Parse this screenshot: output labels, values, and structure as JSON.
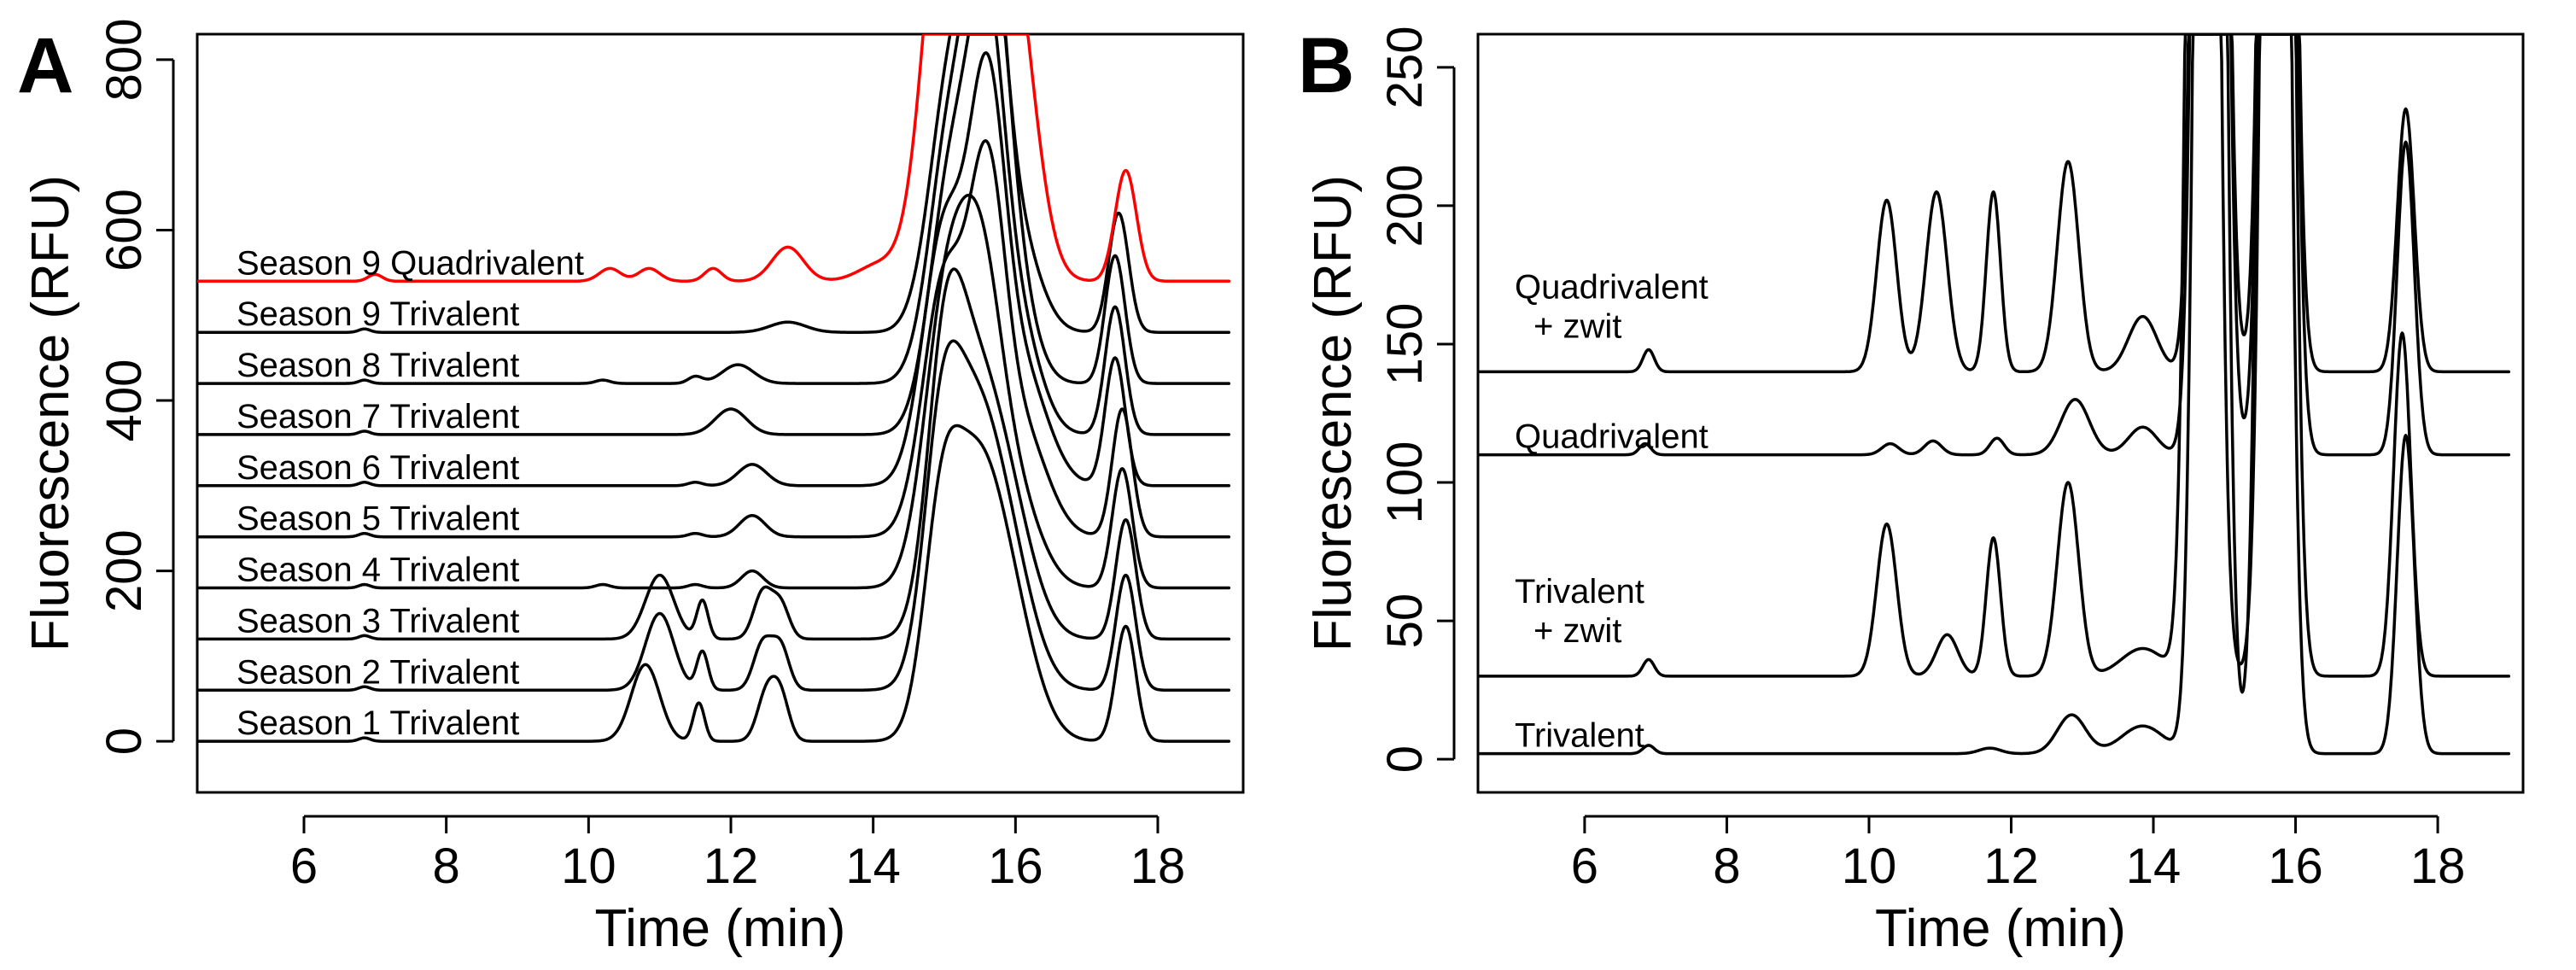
{
  "figure": {
    "panels": [
      "A",
      "B"
    ]
  },
  "chart_data": [
    {
      "panel": "A",
      "type": "line",
      "title": "",
      "xlabel": "Time (min)",
      "ylabel": "Fluorescence (RFU)",
      "xlim": [
        4.5,
        19.2
      ],
      "ylim": [
        -60,
        830
      ],
      "xticks": [
        6,
        8,
        10,
        12,
        14,
        16,
        18
      ],
      "yticks": [
        0,
        200,
        400,
        600,
        800
      ],
      "grid": false,
      "legend": "inline labels",
      "clip_max": 830,
      "x_start": 4.5,
      "x_end": 19.0,
      "series": [
        {
          "name": "Season 1 Trivalent",
          "color": "#000000",
          "baseline": 0,
          "peaks": [
            [
              6.85,
              4,
              0.08
            ],
            [
              10.8,
              90,
              0.2
            ],
            [
              11.55,
              45,
              0.08
            ],
            [
              12.5,
              55,
              0.13
            ],
            [
              12.7,
              50,
              0.12
            ],
            [
              14.95,
              200,
              0.25
            ],
            [
              15.45,
              300,
              0.38
            ],
            [
              16.0,
              100,
              0.35
            ],
            [
              17.55,
              135,
              0.14
            ]
          ]
        },
        {
          "name": "Season 2 Trivalent",
          "color": "#000000",
          "baseline": 60,
          "peaks": [
            [
              6.85,
              4,
              0.08
            ],
            [
              11.0,
              90,
              0.2
            ],
            [
              11.6,
              45,
              0.08
            ],
            [
              12.45,
              55,
              0.13
            ],
            [
              12.7,
              50,
              0.12
            ],
            [
              14.95,
              220,
              0.25
            ],
            [
              15.4,
              300,
              0.38
            ],
            [
              15.95,
              110,
              0.35
            ],
            [
              17.55,
              135,
              0.14
            ]
          ]
        },
        {
          "name": "Season 3 Trivalent",
          "color": "#000000",
          "baseline": 120,
          "peaks": [
            [
              6.85,
              4,
              0.08
            ],
            [
              11.0,
              75,
              0.2
            ],
            [
              11.6,
              45,
              0.08
            ],
            [
              12.45,
              55,
              0.13
            ],
            [
              12.7,
              40,
              0.12
            ],
            [
              15.0,
              240,
              0.25
            ],
            [
              15.4,
              280,
              0.38
            ],
            [
              15.95,
              110,
              0.35
            ],
            [
              17.55,
              140,
              0.14
            ]
          ]
        },
        {
          "name": "Season 4 Trivalent",
          "color": "#000000",
          "baseline": 180,
          "peaks": [
            [
              6.85,
              4,
              0.08
            ],
            [
              10.2,
              4,
              0.1
            ],
            [
              11.5,
              4,
              0.1
            ],
            [
              12.3,
              20,
              0.15
            ],
            [
              15.0,
              300,
              0.3
            ],
            [
              15.5,
              330,
              0.3
            ],
            [
              16.0,
              100,
              0.35
            ],
            [
              17.5,
              140,
              0.14
            ]
          ]
        },
        {
          "name": "Season 5 Trivalent",
          "color": "#000000",
          "baseline": 240,
          "peaks": [
            [
              6.85,
              4,
              0.08
            ],
            [
              11.5,
              4,
              0.1
            ],
            [
              12.3,
              25,
              0.18
            ],
            [
              15.0,
              300,
              0.3
            ],
            [
              15.6,
              380,
              0.25
            ],
            [
              16.1,
              120,
              0.35
            ],
            [
              17.5,
              150,
              0.14
            ]
          ]
        },
        {
          "name": "Season 6 Trivalent",
          "color": "#000000",
          "baseline": 300,
          "peaks": [
            [
              6.85,
              4,
              0.08
            ],
            [
              11.5,
              4,
              0.1
            ],
            [
              12.3,
              25,
              0.2
            ],
            [
              15.0,
              300,
              0.3
            ],
            [
              15.6,
              420,
              0.25
            ],
            [
              16.1,
              130,
              0.35
            ],
            [
              17.4,
              150,
              0.14
            ]
          ]
        },
        {
          "name": "Season 7 Trivalent",
          "color": "#000000",
          "baseline": 360,
          "peaks": [
            [
              6.85,
              4,
              0.08
            ],
            [
              12.0,
              30,
              0.22
            ],
            [
              15.1,
              300,
              0.3
            ],
            [
              15.6,
              420,
              0.25
            ],
            [
              16.05,
              120,
              0.3
            ],
            [
              17.4,
              150,
              0.14
            ]
          ]
        },
        {
          "name": "Season 8 Trivalent",
          "color": "#000000",
          "baseline": 420,
          "peaks": [
            [
              6.85,
              4,
              0.08
            ],
            [
              10.2,
              4,
              0.1
            ],
            [
              11.5,
              8,
              0.1
            ],
            [
              12.1,
              22,
              0.22
            ],
            [
              15.1,
              300,
              0.3
            ],
            [
              15.6,
              430,
              0.25
            ],
            [
              15.9,
              150,
              0.3
            ],
            [
              17.4,
              150,
              0.14
            ]
          ]
        },
        {
          "name": "Season 9 Trivalent",
          "color": "#000000",
          "baseline": 480,
          "peaks": [
            [
              6.85,
              4,
              0.08
            ],
            [
              12.8,
              12,
              0.25
            ],
            [
              15.1,
              300,
              0.3
            ],
            [
              15.6,
              430,
              0.25
            ],
            [
              16.05,
              100,
              0.3
            ],
            [
              17.45,
              140,
              0.14
            ]
          ]
        },
        {
          "name": "Season 9 Quadrivalent",
          "color": "#ff0000",
          "baseline": 540,
          "peaks": [
            [
              7.0,
              8,
              0.1
            ],
            [
              10.3,
              15,
              0.15
            ],
            [
              10.85,
              15,
              0.15
            ],
            [
              11.75,
              15,
              0.12
            ],
            [
              12.8,
              40,
              0.22
            ],
            [
              14.1,
              20,
              0.3
            ],
            [
              15.0,
              450,
              0.3
            ],
            [
              15.5,
              450,
              0.3
            ],
            [
              16.0,
              300,
              0.3
            ],
            [
              17.55,
              130,
              0.15
            ]
          ]
        }
      ]
    },
    {
      "panel": "B",
      "type": "line",
      "title": "",
      "xlabel": "Time (min)",
      "ylabel": "Fluorescence (RFU)",
      "xlim": [
        4.5,
        19.2
      ],
      "ylim": [
        -12,
        262
      ],
      "xticks": [
        6,
        8,
        10,
        12,
        14,
        16,
        18
      ],
      "yticks": [
        0,
        50,
        100,
        150,
        200,
        250
      ],
      "grid": false,
      "legend": "inline labels",
      "clip_max": 262,
      "x_start": 4.5,
      "x_end": 19.0,
      "series": [
        {
          "name": "Trivalent",
          "label_lines": [
            "Trivalent"
          ],
          "color": "#000000",
          "baseline": 2,
          "peaks": [
            [
              6.9,
              3,
              0.08
            ],
            [
              11.7,
              2,
              0.15
            ],
            [
              12.85,
              14,
              0.2
            ],
            [
              13.85,
              10,
              0.3
            ],
            [
              14.8,
              1000,
              0.15
            ],
            [
              15.7,
              1000,
              0.15
            ],
            [
              17.55,
              115,
              0.12
            ]
          ]
        },
        {
          "name": "Trivalent + zwit",
          "label_lines": [
            "Trivalent",
            "+ zwit"
          ],
          "color": "#000000",
          "baseline": 30,
          "peaks": [
            [
              6.9,
              6,
              0.08
            ],
            [
              10.25,
              55,
              0.14
            ],
            [
              11.1,
              15,
              0.15
            ],
            [
              11.75,
              50,
              0.1
            ],
            [
              12.8,
              70,
              0.15
            ],
            [
              13.85,
              10,
              0.3
            ],
            [
              14.7,
              1000,
              0.15
            ],
            [
              15.75,
              1000,
              0.15
            ],
            [
              17.5,
              124,
              0.12
            ]
          ]
        },
        {
          "name": "Quadrivalent",
          "label_lines": [
            "Quadrivalent"
          ],
          "color": "#000000",
          "baseline": 110,
          "peaks": [
            [
              6.85,
              4,
              0.08
            ],
            [
              10.3,
              4,
              0.12
            ],
            [
              10.9,
              5,
              0.12
            ],
            [
              11.8,
              6,
              0.1
            ],
            [
              12.9,
              20,
              0.2
            ],
            [
              13.85,
              10,
              0.2
            ],
            [
              14.8,
              1000,
              0.15
            ],
            [
              15.75,
              1000,
              0.15
            ],
            [
              17.55,
              113,
              0.12
            ]
          ]
        },
        {
          "name": "Quadrivalent + zwit",
          "label_lines": [
            "Quadrivalent",
            "+ zwit"
          ],
          "color": "#000000",
          "baseline": 140,
          "peaks": [
            [
              6.9,
              8,
              0.08
            ],
            [
              10.25,
              62,
              0.14
            ],
            [
              10.95,
              65,
              0.15
            ],
            [
              11.75,
              65,
              0.1
            ],
            [
              12.8,
              76,
              0.15
            ],
            [
              13.85,
              20,
              0.2
            ],
            [
              14.8,
              1000,
              0.15
            ],
            [
              15.75,
              1000,
              0.15
            ],
            [
              17.55,
              95,
              0.12
            ]
          ]
        }
      ]
    }
  ]
}
